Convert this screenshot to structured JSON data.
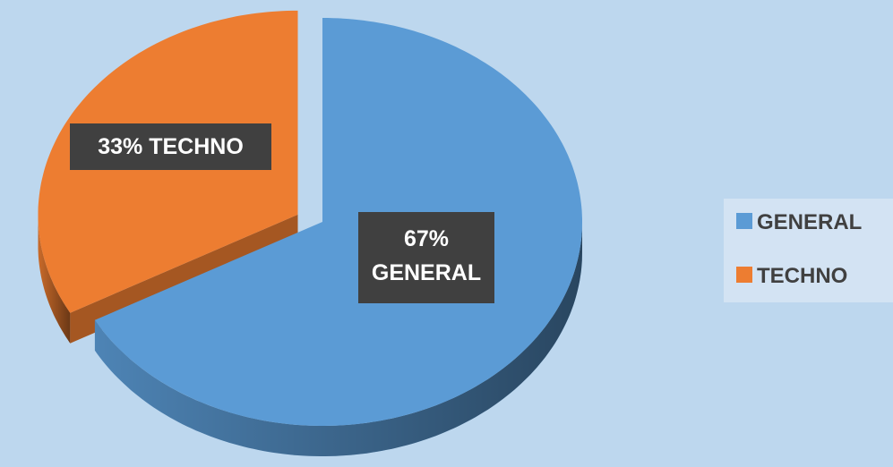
{
  "chart_data": {
    "type": "pie",
    "categories": [
      "GENERAL",
      "TECHNO"
    ],
    "values": [
      67,
      33
    ],
    "value_labels": [
      "67%",
      "33%"
    ],
    "colors": [
      "#5b9bd5",
      "#ed7d31"
    ],
    "legend": "right"
  }
}
